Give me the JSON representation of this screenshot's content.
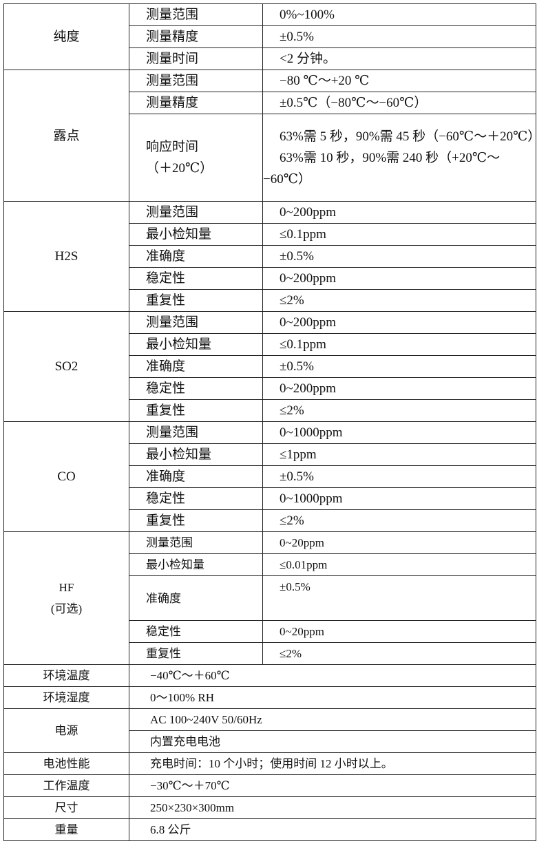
{
  "sections": [
    {
      "label": [
        "纯度"
      ],
      "rows": [
        {
          "param": [
            "测量范围"
          ],
          "value": [
            "0%~100%"
          ]
        },
        {
          "param": [
            "测量精度"
          ],
          "value": [
            "±0.5%"
          ]
        },
        {
          "param": [
            "测量时间"
          ],
          "value": [
            "<2 分钟。"
          ]
        }
      ]
    },
    {
      "label": [
        "露点"
      ],
      "rows": [
        {
          "param": [
            "测量范围"
          ],
          "value": [
            "−80 ℃～+20 ℃"
          ]
        },
        {
          "param": [
            "测量精度"
          ],
          "value": [
            "±0.5℃（−80℃～−60℃）"
          ]
        },
        {
          "param": [
            "响应时间",
            "（＋20℃）"
          ],
          "value": [
            "63%需 5 秒，90%需 45 秒（−60℃～＋20℃）",
            "63%需 10 秒，90%需 240 秒（+20℃～−60℃）"
          ]
        }
      ]
    },
    {
      "label": [
        "H2S"
      ],
      "rows": [
        {
          "param": [
            "测量范围"
          ],
          "value": [
            "0~200ppm"
          ]
        },
        {
          "param": [
            "最小检知量"
          ],
          "value": [
            "≤0.1ppm"
          ]
        },
        {
          "param": [
            "准确度"
          ],
          "value": [
            "±0.5%"
          ]
        },
        {
          "param": [
            "稳定性"
          ],
          "value": [
            "0~200ppm"
          ]
        },
        {
          "param": [
            "重复性"
          ],
          "value": [
            "≤2%"
          ]
        }
      ]
    },
    {
      "label": [
        "SO2"
      ],
      "rows": [
        {
          "param": [
            "测量范围"
          ],
          "value": [
            "0~200ppm"
          ]
        },
        {
          "param": [
            "最小检知量"
          ],
          "value": [
            "≤0.1ppm"
          ]
        },
        {
          "param": [
            "准确度"
          ],
          "value": [
            "±0.5%"
          ]
        },
        {
          "param": [
            "稳定性"
          ],
          "value": [
            "0~200ppm"
          ]
        },
        {
          "param": [
            "重复性"
          ],
          "value": [
            "≤2%"
          ]
        }
      ]
    },
    {
      "label": [
        "CO"
      ],
      "rows": [
        {
          "param": [
            "测量范围"
          ],
          "value": [
            "0~1000ppm"
          ]
        },
        {
          "param": [
            "最小检知量"
          ],
          "value": [
            "≤1ppm"
          ]
        },
        {
          "param": [
            "准确度"
          ],
          "value": [
            "±0.5%"
          ]
        },
        {
          "param": [
            "稳定性"
          ],
          "value": [
            "0~1000ppm"
          ]
        },
        {
          "param": [
            "重复性"
          ],
          "value": [
            "≤2%"
          ]
        }
      ]
    },
    {
      "label": [
        "HF",
        "(可选)"
      ],
      "rows": [
        {
          "param": [
            "测量范围"
          ],
          "value": [
            "0~20ppm"
          ]
        },
        {
          "param": [
            "最小检知量"
          ],
          "value": [
            "≤0.01ppm"
          ]
        },
        {
          "param": [
            "准确度"
          ],
          "value": [
            "±0.5%"
          ]
        },
        {
          "param": [
            "稳定性"
          ],
          "value": [
            "0~20ppm"
          ]
        },
        {
          "param": [
            "重复性"
          ],
          "value": [
            "≤2%"
          ]
        }
      ]
    }
  ],
  "general": [
    {
      "label": "环境温度",
      "values": [
        "−40℃～＋60℃"
      ]
    },
    {
      "label": "环境湿度",
      "values": [
        "0～100% RH"
      ]
    },
    {
      "label": "电源",
      "values": [
        "AC 100~240V 50/60Hz",
        "内置充电电池"
      ]
    },
    {
      "label": "电池性能",
      "values": [
        "充电时间：10 个小时；使用时间 12 小时以上。"
      ]
    },
    {
      "label": "工作温度",
      "values": [
        "−30℃～＋70℃"
      ]
    },
    {
      "label": "尺寸",
      "values": [
        "250×230×300mm"
      ]
    },
    {
      "label": "重量",
      "values": [
        "6.8 公斤"
      ]
    }
  ]
}
